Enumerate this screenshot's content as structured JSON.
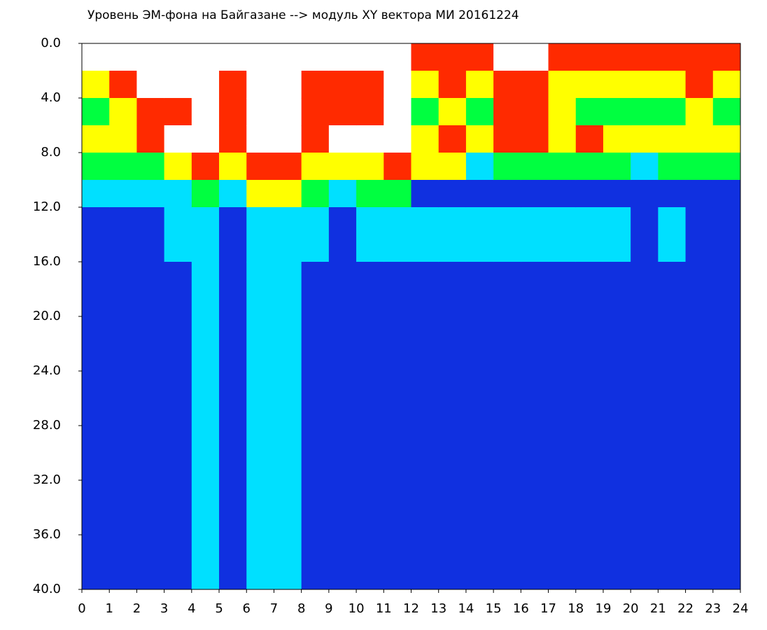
{
  "chart_data": {
    "type": "heatmap",
    "title": "Уровень ЭМ-фона на Байгазане   -->  модуль XY вектора МИ  20161224",
    "xbins": [
      0,
      1,
      2,
      3,
      4,
      5,
      6,
      7,
      8,
      9,
      10,
      11,
      12,
      13,
      14,
      15,
      16,
      17,
      18,
      19,
      20,
      21,
      22,
      23,
      24
    ],
    "ybins": [
      0,
      2,
      4,
      6,
      8,
      10,
      12,
      16,
      40
    ],
    "colors": [
      "#ffffff",
      "#ff2a00",
      "#ffff00",
      "#00ff40",
      "#00e0ff",
      "#1030e0"
    ],
    "values": [
      [
        0,
        2,
        3,
        2,
        3,
        4,
        5,
        5
      ],
      [
        0,
        1,
        2,
        2,
        3,
        4,
        5,
        5
      ],
      [
        0,
        0,
        1,
        1,
        3,
        4,
        5,
        5
      ],
      [
        0,
        0,
        1,
        0,
        2,
        4,
        4,
        5
      ],
      [
        0,
        0,
        0,
        0,
        1,
        3,
        4,
        4
      ],
      [
        0,
        1,
        1,
        1,
        2,
        4,
        5,
        5
      ],
      [
        0,
        0,
        0,
        0,
        1,
        2,
        4,
        4
      ],
      [
        0,
        0,
        0,
        0,
        1,
        2,
        4,
        4
      ],
      [
        0,
        1,
        1,
        1,
        2,
        3,
        4,
        5
      ],
      [
        0,
        1,
        1,
        0,
        2,
        4,
        5,
        5
      ],
      [
        0,
        1,
        1,
        0,
        2,
        3,
        4,
        5
      ],
      [
        0,
        0,
        0,
        0,
        1,
        3,
        4,
        5
      ],
      [
        1,
        2,
        3,
        2,
        2,
        5,
        4,
        5
      ],
      [
        1,
        1,
        2,
        1,
        2,
        5,
        4,
        5
      ],
      [
        1,
        2,
        3,
        2,
        4,
        5,
        4,
        5
      ],
      [
        0,
        1,
        1,
        1,
        3,
        5,
        4,
        5
      ],
      [
        0,
        1,
        1,
        1,
        3,
        5,
        4,
        5
      ],
      [
        1,
        2,
        2,
        2,
        3,
        5,
        4,
        5
      ],
      [
        1,
        2,
        3,
        1,
        3,
        5,
        4,
        5
      ],
      [
        1,
        2,
        3,
        2,
        3,
        5,
        4,
        5
      ],
      [
        1,
        2,
        3,
        2,
        4,
        5,
        5,
        5
      ],
      [
        1,
        2,
        3,
        2,
        3,
        5,
        4,
        5
      ],
      [
        1,
        1,
        2,
        2,
        3,
        5,
        5,
        5
      ],
      [
        1,
        2,
        3,
        2,
        3,
        5,
        5,
        5
      ]
    ],
    "xlim": [
      0,
      24
    ],
    "xticks": [
      0,
      1,
      2,
      3,
      4,
      5,
      6,
      7,
      8,
      9,
      10,
      11,
      12,
      13,
      14,
      15,
      16,
      17,
      18,
      19,
      20,
      21,
      22,
      23,
      24
    ],
    "ylim": [
      0,
      40
    ],
    "yinverted": true,
    "yticks": [
      {
        "value": 0,
        "label": "0.0"
      },
      {
        "value": 4,
        "label": "4.0"
      },
      {
        "value": 8,
        "label": "8.0"
      },
      {
        "value": 12,
        "label": "12.0"
      },
      {
        "value": 16,
        "label": "16.0"
      },
      {
        "value": 20,
        "label": "20.0"
      },
      {
        "value": 24,
        "label": "24.0"
      },
      {
        "value": 28,
        "label": "28.0"
      },
      {
        "value": 32,
        "label": "32.0"
      },
      {
        "value": 36,
        "label": "36.0"
      },
      {
        "value": 40,
        "label": "40.0"
      }
    ]
  }
}
